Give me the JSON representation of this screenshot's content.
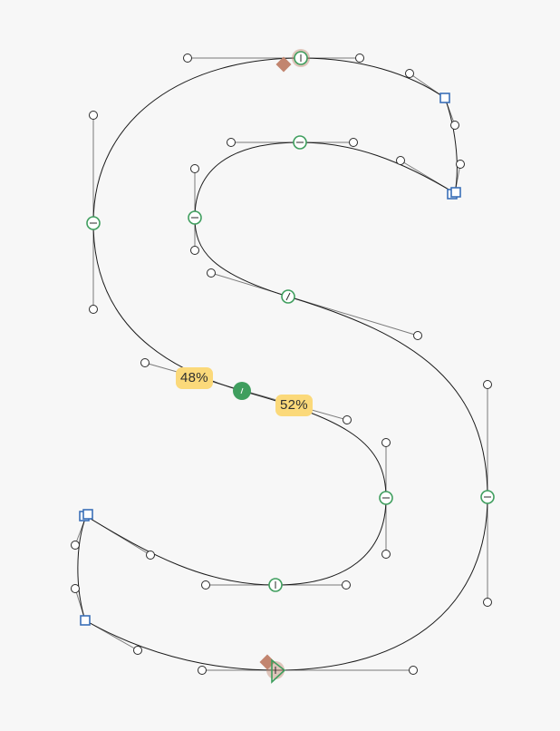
{
  "colors": {
    "background": "#f7f7f7",
    "outline": "#1b1b1b",
    "handle_line": "#7a7a7a",
    "smooth_node": "#3f9e5e",
    "corner_node": "#3a6fb8",
    "selected_node": "#3f9e5e",
    "anchor_marker": "#c2856f",
    "label_background": "#fbd97a"
  },
  "segment_split": {
    "left_label": "48%",
    "right_label": "52%"
  },
  "icons": {
    "start_point": "start-triangle-icon",
    "anchor": "anchor-diamond-icon"
  }
}
